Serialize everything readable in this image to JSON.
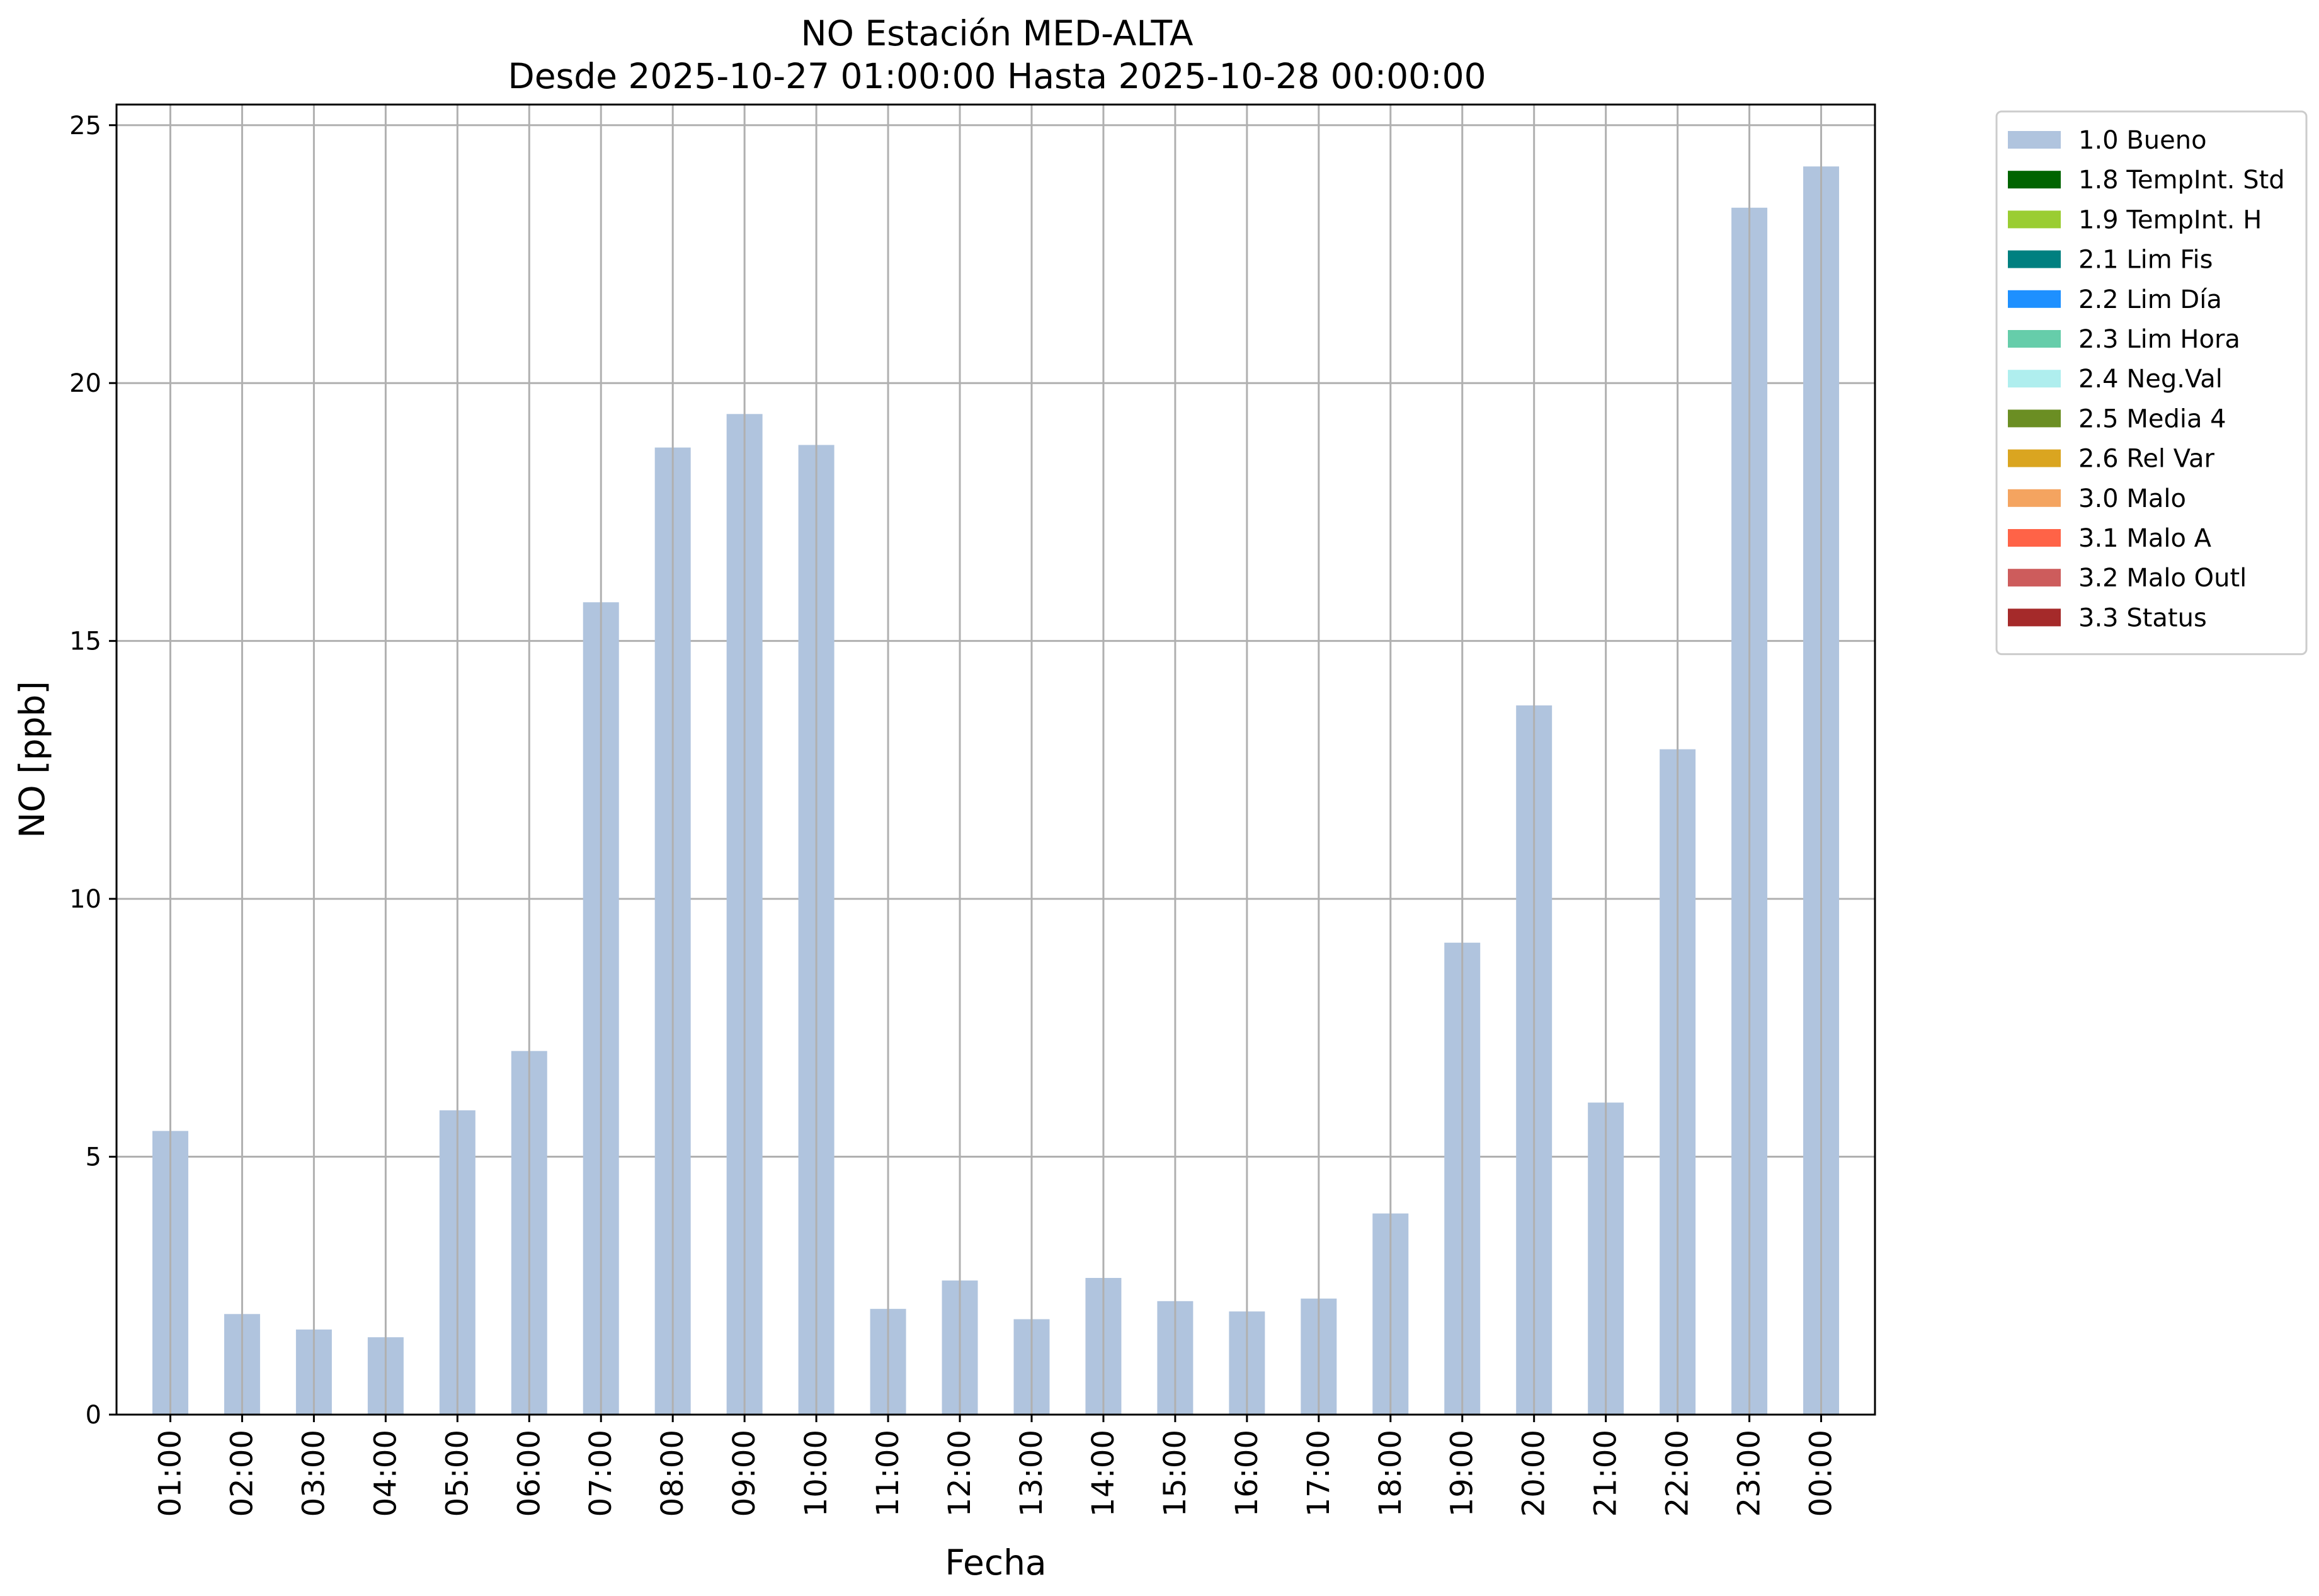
{
  "chart_data": {
    "type": "bar",
    "title": "NO Estación MED-ALTA",
    "subtitle": "Desde 2025-10-27 01:00:00 Hasta 2025-10-28 00:00:00",
    "xlabel": "Fecha",
    "ylabel": "NO [ppb]",
    "ylim": [
      0,
      25.4
    ],
    "yticks": [
      0,
      5,
      10,
      15,
      20,
      25
    ],
    "grid": true,
    "legend_position": "outside-top-right",
    "categories": [
      "01:00",
      "02:00",
      "03:00",
      "04:00",
      "05:00",
      "06:00",
      "07:00",
      "08:00",
      "09:00",
      "10:00",
      "11:00",
      "12:00",
      "13:00",
      "14:00",
      "15:00",
      "16:00",
      "17:00",
      "18:00",
      "19:00",
      "20:00",
      "21:00",
      "22:00",
      "23:00",
      "00:00"
    ],
    "series": [
      {
        "name": "1.0 Bueno",
        "color": "#b0c4de",
        "values": [
          5.5,
          1.95,
          1.65,
          1.5,
          5.9,
          7.05,
          15.75,
          18.75,
          19.4,
          18.8,
          2.05,
          2.6,
          1.85,
          2.65,
          2.2,
          2.0,
          2.25,
          3.9,
          9.15,
          13.75,
          6.05,
          12.9,
          23.4,
          24.2
        ]
      }
    ],
    "legend": [
      {
        "label": "1.0 Bueno",
        "color": "#b0c4de"
      },
      {
        "label": "1.8 TempInt. Std",
        "color": "#006400"
      },
      {
        "label": "1.9 TempInt. H",
        "color": "#9acd32"
      },
      {
        "label": "2.1 Lim Fis",
        "color": "#008080"
      },
      {
        "label": "2.2 Lim Día",
        "color": "#1e90ff"
      },
      {
        "label": "2.3 Lim Hora",
        "color": "#66cdaa"
      },
      {
        "label": "2.4 Neg.Val",
        "color": "#afeeee"
      },
      {
        "label": "2.5 Media 4",
        "color": "#6b8e23"
      },
      {
        "label": "2.6 Rel Var",
        "color": "#daa520"
      },
      {
        "label": "3.0 Malo",
        "color": "#f4a460"
      },
      {
        "label": "3.1 Malo A",
        "color": "#ff6347"
      },
      {
        "label": "3.2 Malo Outl",
        "color": "#cd5c5c"
      },
      {
        "label": "3.3 Status",
        "color": "#a52a2a"
      }
    ]
  }
}
